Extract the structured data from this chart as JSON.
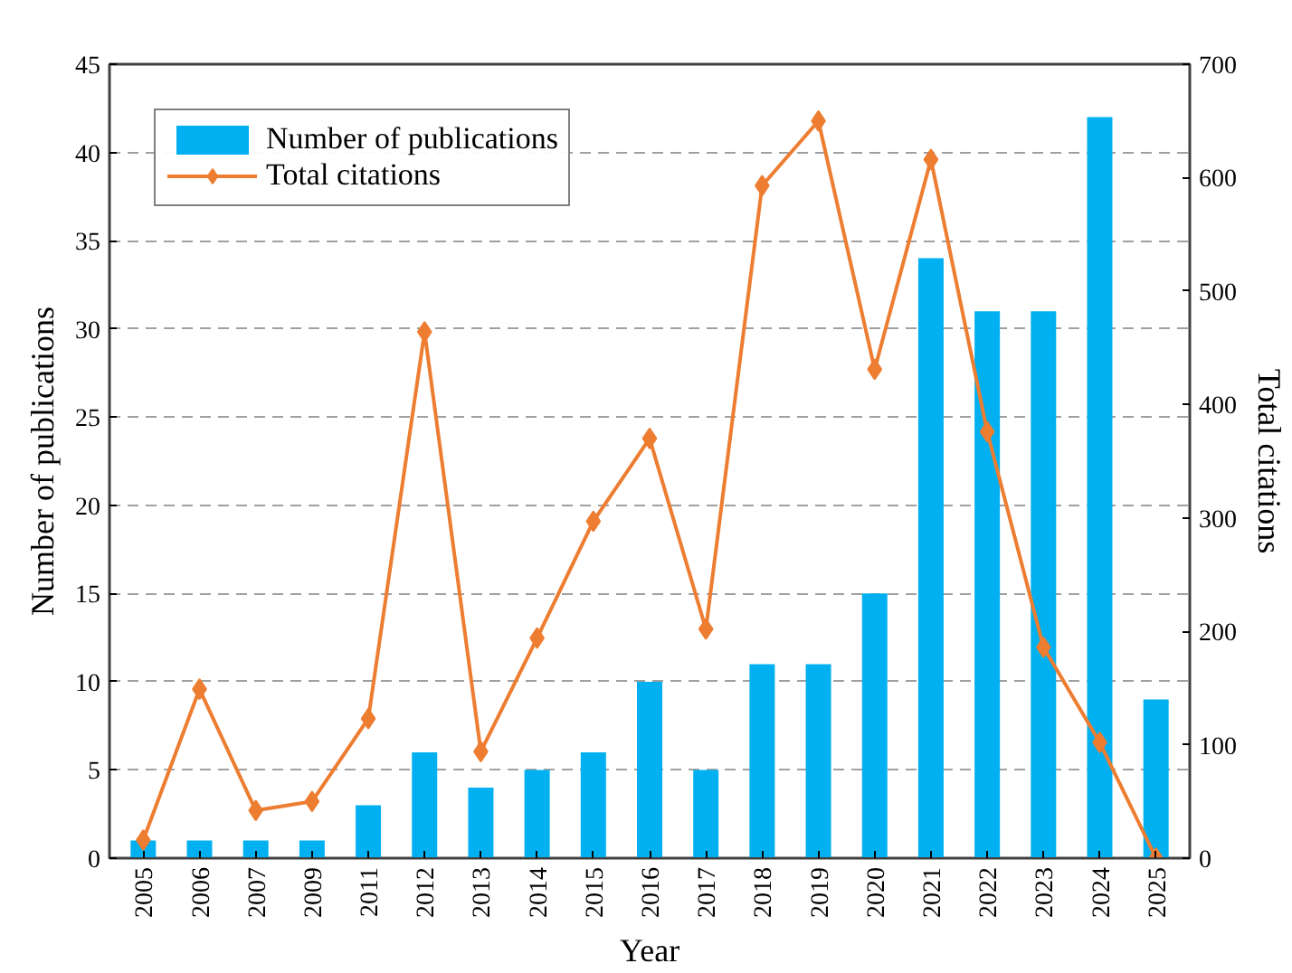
{
  "chart_data": {
    "type": "bar",
    "xlabel": "Year",
    "ylabel": "Number of publications",
    "y2label": "Total citations",
    "categories": [
      "2005",
      "2006",
      "2007",
      "2009",
      "2011",
      "2012",
      "2013",
      "2014",
      "2015",
      "2016",
      "2017",
      "2018",
      "2019",
      "2020",
      "2021",
      "2022",
      "2023",
      "2024",
      "2025"
    ],
    "series": [
      {
        "name": "Number of publications",
        "color": "#00b0f0",
        "values": [
          1,
          1,
          1,
          1,
          3,
          6,
          4,
          5,
          6,
          10,
          5,
          11,
          11,
          15,
          34,
          31,
          31,
          42,
          9
        ]
      },
      {
        "name": "Total citations",
        "type": "line",
        "axis": "y2",
        "color": "#ed7d31",
        "marker": "diamond",
        "values": [
          16,
          149,
          42,
          50,
          123,
          464,
          94,
          194,
          297,
          370,
          202,
          593,
          650,
          431,
          616,
          376,
          186,
          102,
          0
        ]
      }
    ],
    "ylim": [
      0,
      45
    ],
    "yticks": [
      0,
      5,
      10,
      15,
      20,
      25,
      30,
      35,
      40,
      45
    ],
    "y2lim": [
      0,
      700
    ],
    "y2ticks": [
      0,
      100,
      200,
      300,
      400,
      500,
      600,
      700
    ],
    "grid": "y",
    "legend": "top left"
  }
}
